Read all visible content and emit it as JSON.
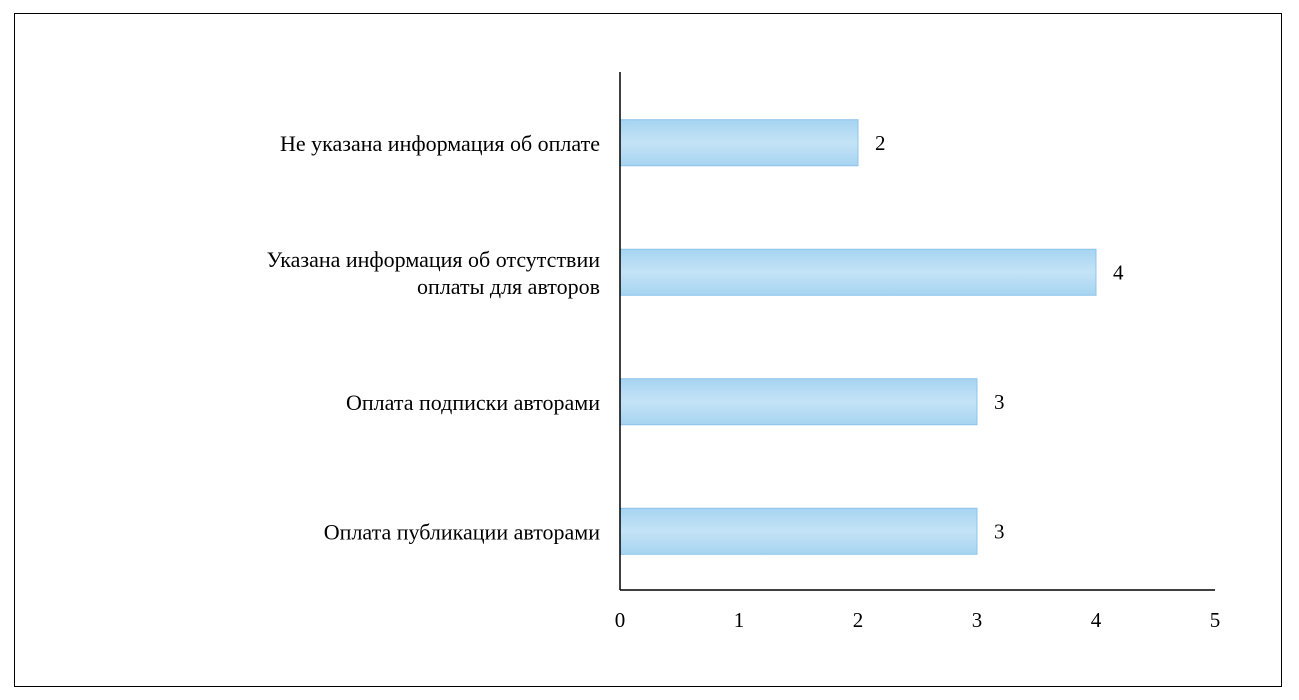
{
  "chart_data": {
    "type": "bar",
    "orientation": "horizontal",
    "categories": [
      [
        "Не указана информация об оплате"
      ],
      [
        "Указана информация об отсутствии",
        "оплаты для авторов"
      ],
      [
        "Оплата подписки авторами"
      ],
      [
        "Оплата публикации авторами"
      ]
    ],
    "values": [
      2,
      4,
      3,
      3
    ],
    "value_labels": [
      "2",
      "4",
      "3",
      "3"
    ],
    "xlim": [
      0,
      5
    ],
    "x_ticks": [
      0,
      1,
      2,
      3,
      4,
      5
    ],
    "x_tick_labels": [
      "0",
      "1",
      "2",
      "3",
      "4",
      "5"
    ],
    "grid": false,
    "legend": "none",
    "colors": {
      "bar_fill_light": "#c4e3f6",
      "bar_fill_mid": "#a6d4f1",
      "bar_stroke": "#8cc4ea",
      "axis": "#000000"
    }
  }
}
